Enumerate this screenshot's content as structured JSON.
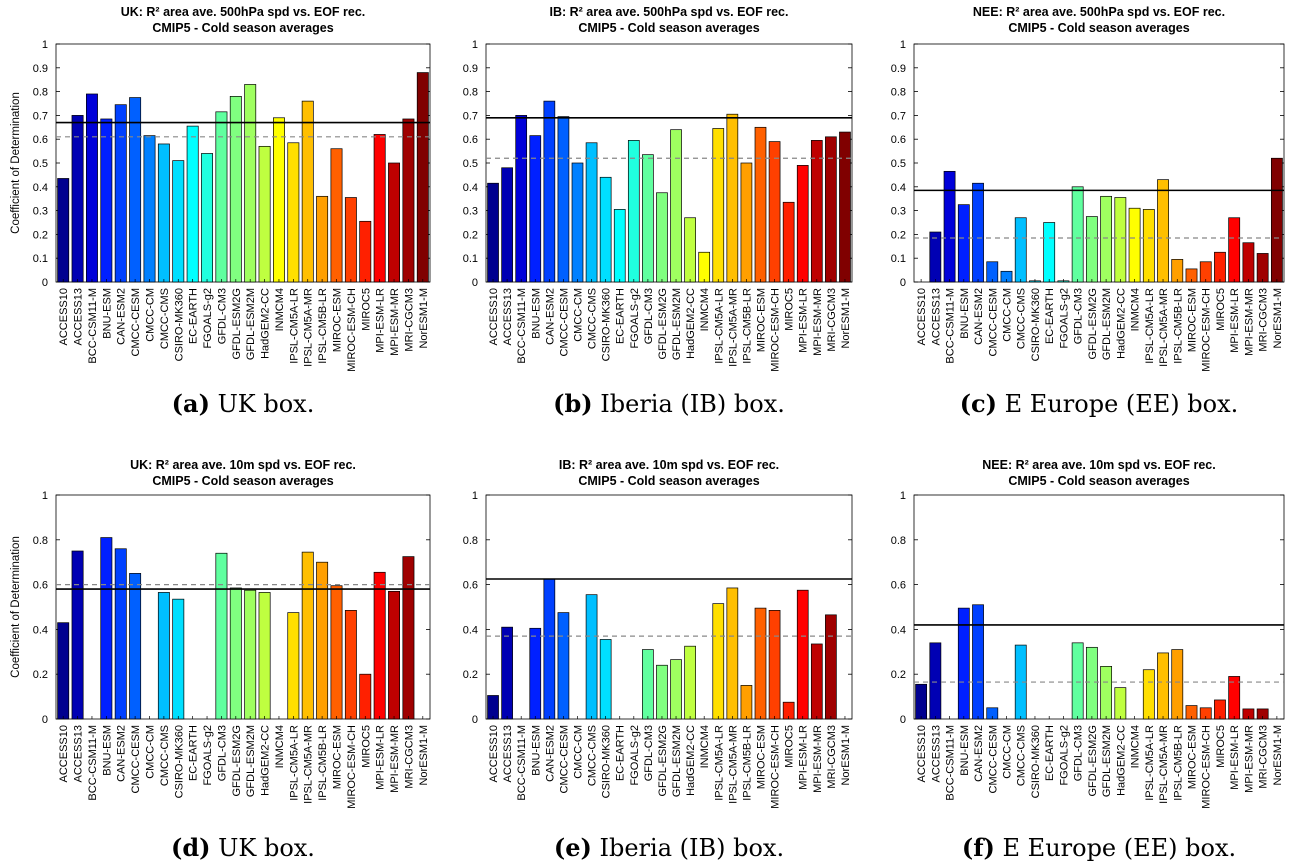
{
  "colors": {
    "palette": [
      "#00008f",
      "#0000b3",
      "#0000d9",
      "#0000ff",
      "#0020ff",
      "#0040ff",
      "#0060ff",
      "#0080ff",
      "#009fff",
      "#00bfff",
      "#00dfff",
      "#00ffff",
      "#20ffdf",
      "#40ffbf",
      "#60ff9f",
      "#80ff80",
      "#9fff60",
      "#bfff40",
      "#dfff20",
      "#ffff00",
      "#ffdf00",
      "#ffbf00",
      "#ff9f00",
      "#ff8000",
      "#ff6000",
      "#ff4000",
      "#ff2000",
      "#ff0000",
      "#df0000",
      "#bf0000",
      "#9f0000",
      "#800000"
    ],
    "mean_line": "#000000",
    "reference_line": "#888888"
  },
  "chart_data": [
    {
      "type": "bar",
      "title_line1": "UK: R² area ave.  500hPa spd vs. EOF rec.",
      "title_line2": "CMIP5 - Cold season averages",
      "ylabel": "Coefficient of Determination",
      "ylim": [
        0,
        1
      ],
      "yticks": [
        "0",
        "0.1",
        "0.2",
        "0.3",
        "0.4",
        "0.5",
        "0.6",
        "0.7",
        "0.8",
        "0.9",
        "1"
      ],
      "categories": [
        "ACCESS10",
        "ACCESS13",
        "BCC-CSM11-M",
        "BNU-ESM",
        "CAN-ESM2",
        "CMCC-CESM",
        "CMCC-CM",
        "CMCC-CMS",
        "CSIRO-MK360",
        "EC-EARTH",
        "FGOALS-g2",
        "GFDL-CM3",
        "GFDL-ESM2G",
        "GFDL-ESM2M",
        "HadGEM2-CC",
        "INMCM4",
        "IPSL-CM5A-LR",
        "IPSL-CM5A-MR",
        "IPSL-CM5B-LR",
        "MIROC-ESM",
        "MIROC-ESM-CH",
        "MIROC5",
        "MPI-ESM-LR",
        "MPI-ESM-MR",
        "MRI-CGCM3",
        "NorESM1-M"
      ],
      "values": [
        0.435,
        0.7,
        0.79,
        0.685,
        0.745,
        0.775,
        0.615,
        0.58,
        0.51,
        0.655,
        0.54,
        0.715,
        0.78,
        0.83,
        0.57,
        0.69,
        0.585,
        0.76,
        0.36,
        0.56,
        0.355,
        0.255,
        0.62,
        0.5,
        0.685,
        0.88
      ],
      "mean_line": 0.67,
      "reference_line": 0.61,
      "caption_letter": "(a)",
      "caption_text": " UK box."
    },
    {
      "type": "bar",
      "title_line1": "IB: R² area ave.  500hPa spd vs. EOF rec.",
      "title_line2": "CMIP5 - Cold season averages",
      "ylabel": "",
      "ylim": [
        0,
        1
      ],
      "yticks": [
        "0",
        "0.1",
        "0.2",
        "0.3",
        "0.4",
        "0.5",
        "0.6",
        "0.7",
        "0.8",
        "0.9",
        "1"
      ],
      "categories": [
        "ACCESS10",
        "ACCESS13",
        "BCC-CSM11-M",
        "BNU-ESM",
        "CAN-ESM2",
        "CMCC-CESM",
        "CMCC-CM",
        "CMCC-CMS",
        "CSIRO-MK360",
        "EC-EARTH",
        "FGOALS-g2",
        "GFDL-CM3",
        "GFDL-ESM2G",
        "GFDL-ESM2M",
        "HadGEM2-CC",
        "INMCM4",
        "IPSL-CM5A-LR",
        "IPSL-CM5A-MR",
        "IPSL-CM5B-LR",
        "MIROC-ESM",
        "MIROC-ESM-CH",
        "MIROC5",
        "MPI-ESM-LR",
        "MPI-ESM-MR",
        "MRI-CGCM3",
        "NorESM1-M"
      ],
      "values": [
        0.415,
        0.48,
        0.7,
        0.615,
        0.76,
        0.695,
        0.5,
        0.585,
        0.44,
        0.305,
        0.595,
        0.535,
        0.375,
        0.64,
        0.27,
        0.125,
        0.645,
        0.705,
        0.5,
        0.65,
        0.59,
        0.335,
        0.49,
        0.595,
        0.61,
        0.63
      ],
      "mean_line": 0.69,
      "reference_line": 0.52,
      "caption_letter": "(b)",
      "caption_text": " Iberia (IB) box."
    },
    {
      "type": "bar",
      "title_line1": "NEE: R² area ave.  500hPa spd vs. EOF rec.",
      "title_line2": "CMIP5 - Cold season averages",
      "ylabel": "",
      "ylim": [
        0,
        1
      ],
      "yticks": [
        "0",
        "0.1",
        "0.2",
        "0.3",
        "0.4",
        "0.5",
        "0.6",
        "0.7",
        "0.8",
        "0.9",
        "1"
      ],
      "categories": [
        "ACCESS10",
        "ACCESS13",
        "BCC-CSM11-M",
        "BNU-ESM",
        "CAN-ESM2",
        "CMCC-CESM",
        "CMCC-CM",
        "CMCC-CMS",
        "CSIRO-MK360",
        "EC-EARTH",
        "FGOALS-g2",
        "GFDL-CM3",
        "GFDL-ESM2G",
        "GFDL-ESM2M",
        "HadGEM2-CC",
        "INMCM4",
        "IPSL-CM5A-LR",
        "IPSL-CM5A-MR",
        "IPSL-CM5B-LR",
        "MIROC-ESM",
        "MIROC-ESM-CH",
        "MIROC5",
        "MPI-ESM-LR",
        "MPI-ESM-MR",
        "MRI-CGCM3",
        "NorESM1-M"
      ],
      "values": [
        0.0,
        0.21,
        0.465,
        0.325,
        0.415,
        0.085,
        0.045,
        0.27,
        0.005,
        0.25,
        0.005,
        0.4,
        0.275,
        0.36,
        0.355,
        0.31,
        0.305,
        0.43,
        0.095,
        0.055,
        0.085,
        0.125,
        0.27,
        0.165,
        0.12,
        0.52
      ],
      "mean_line": 0.385,
      "reference_line": 0.185,
      "caption_letter": "(c)",
      "caption_text": " E Europe (EE) box."
    },
    {
      "type": "bar",
      "title_line1": "UK: R² area ave. 10m spd vs. EOF rec.",
      "title_line2": "CMIP5 - Cold season averages",
      "ylabel": "Coefficient of Determination",
      "ylim": [
        0,
        1
      ],
      "yticks": [
        "0",
        "0.2",
        "0.4",
        "0.6",
        "0.8",
        "1"
      ],
      "categories": [
        "ACCESS10",
        "ACCESS13",
        "BCC-CSM11-M",
        "BNU-ESM",
        "CAN-ESM2",
        "CMCC-CESM",
        "CMCC-CM",
        "CMCC-CMS",
        "CSIRO-MK360",
        "EC-EARTH",
        "FGOALS-g2",
        "GFDL-CM3",
        "GFDL-ESM2G",
        "GFDL-ESM2M",
        "HadGEM2-CC",
        "INMCM4",
        "IPSL-CM5A-LR",
        "IPSL-CM5A-MR",
        "IPSL-CM5B-LR",
        "MIROC-ESM",
        "MIROC-ESM-CH",
        "MIROC5",
        "MPI-ESM-LR",
        "MPI-ESM-MR",
        "MRI-CGCM3",
        "NorESM1-M"
      ],
      "values": [
        0.43,
        0.75,
        0.0,
        0.81,
        0.76,
        0.65,
        0.0,
        0.565,
        0.535,
        0.0,
        0.0,
        0.74,
        0.585,
        0.575,
        0.565,
        0.0,
        0.475,
        0.745,
        0.7,
        0.595,
        0.485,
        0.2,
        0.655,
        0.57,
        0.725,
        0.0
      ],
      "mean_line": 0.58,
      "reference_line": 0.6,
      "caption_letter": "(d)",
      "caption_text": " UK box."
    },
    {
      "type": "bar",
      "title_line1": "IB: R² area ave. 10m spd vs. EOF rec.",
      "title_line2": "CMIP5 - Cold season averages",
      "ylabel": "",
      "ylim": [
        0,
        1
      ],
      "yticks": [
        "0",
        "0.2",
        "0.4",
        "0.6",
        "0.8",
        "1"
      ],
      "categories": [
        "ACCESS10",
        "ACCESS13",
        "BCC-CSM11-M",
        "BNU-ESM",
        "CAN-ESM2",
        "CMCC-CESM",
        "CMCC-CM",
        "CMCC-CMS",
        "CSIRO-MK360",
        "EC-EARTH",
        "FGOALS-g2",
        "GFDL-CM3",
        "GFDL-ESM2G",
        "GFDL-ESM2M",
        "HadGEM2-CC",
        "INMCM4",
        "IPSL-CM5A-LR",
        "IPSL-CM5A-MR",
        "IPSL-CM5B-LR",
        "MIROC-ESM",
        "MIROC-ESM-CH",
        "MIROC5",
        "MPI-ESM-LR",
        "MPI-ESM-MR",
        "MRI-CGCM3",
        "NorESM1-M"
      ],
      "values": [
        0.105,
        0.41,
        0.0,
        0.405,
        0.625,
        0.475,
        0.0,
        0.555,
        0.355,
        0.0,
        0.0,
        0.31,
        0.24,
        0.265,
        0.325,
        0.0,
        0.515,
        0.585,
        0.15,
        0.495,
        0.485,
        0.075,
        0.575,
        0.335,
        0.465,
        0.0
      ],
      "mean_line": 0.625,
      "reference_line": 0.37,
      "caption_letter": "(e)",
      "caption_text": " Iberia (IB) box."
    },
    {
      "type": "bar",
      "title_line1": "NEE: R² area ave. 10m spd vs. EOF rec.",
      "title_line2": "CMIP5 - Cold season averages",
      "ylabel": "",
      "ylim": [
        0,
        1
      ],
      "yticks": [
        "0",
        "0.2",
        "0.4",
        "0.6",
        "0.8",
        "1"
      ],
      "categories": [
        "ACCESS10",
        "ACCESS13",
        "BCC-CSM11-M",
        "BNU-ESM",
        "CAN-ESM2",
        "CMCC-CESM",
        "CMCC-CM",
        "CMCC-CMS",
        "CSIRO-MK360",
        "EC-EARTH",
        "FGOALS-g2",
        "GFDL-CM3",
        "GFDL-ESM2G",
        "GFDL-ESM2M",
        "HadGEM2-CC",
        "INMCM4",
        "IPSL-CM5A-LR",
        "IPSL-CM5A-MR",
        "IPSL-CM5B-LR",
        "MIROC-ESM",
        "MIROC-ESM-CH",
        "MIROC5",
        "MPI-ESM-LR",
        "MPI-ESM-MR",
        "MRI-CGCM3",
        "NorESM1-M"
      ],
      "values": [
        0.155,
        0.34,
        0.0,
        0.495,
        0.51,
        0.05,
        0.0,
        0.33,
        0.0,
        0.0,
        0.0,
        0.34,
        0.32,
        0.235,
        0.14,
        0.0,
        0.22,
        0.295,
        0.31,
        0.06,
        0.05,
        0.085,
        0.19,
        0.045,
        0.045,
        0.0
      ],
      "mean_line": 0.42,
      "reference_line": 0.165,
      "caption_letter": "(f)",
      "caption_text": " E Europe (EE) box."
    }
  ]
}
